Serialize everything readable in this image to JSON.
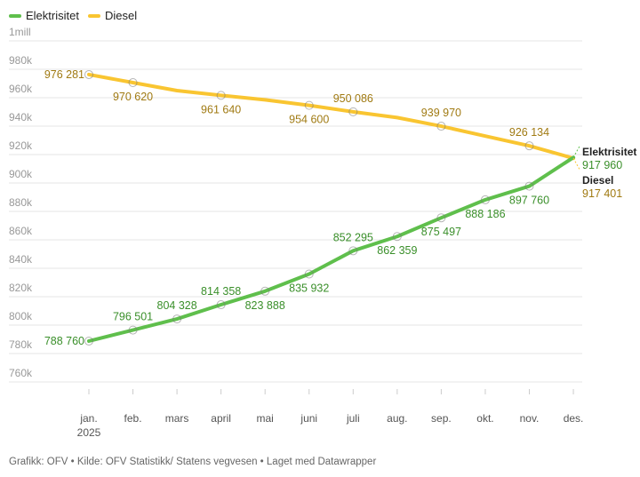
{
  "legend": [
    {
      "label": "Elektrisitet",
      "color": "#5fbf4c"
    },
    {
      "label": "Diesel",
      "color": "#f9c531"
    }
  ],
  "footer": "Grafikk: OFV • Kilde: OFV Statistikk/ Statens vegvesen • Laget med Datawrapper",
  "chart_data": {
    "type": "line",
    "title": "",
    "xlabel": "",
    "ylabel": "",
    "categories": [
      "jan.",
      "feb.",
      "mars",
      "april",
      "mai",
      "juni",
      "juli",
      "aug.",
      "sep.",
      "okt.",
      "nov.",
      "des."
    ],
    "category_sublabels": [
      "2025",
      "",
      "",
      "",
      "",
      "",
      "",
      "",
      "",
      "",
      "",
      ""
    ],
    "ylim": [
      750000,
      1000000
    ],
    "yticks": [
      {
        "value": 1000000,
        "label": "1mill"
      },
      {
        "value": 980000,
        "label": "980k"
      },
      {
        "value": 960000,
        "label": "960k"
      },
      {
        "value": 940000,
        "label": "940k"
      },
      {
        "value": 920000,
        "label": "920k"
      },
      {
        "value": 900000,
        "label": "900k"
      },
      {
        "value": 880000,
        "label": "880k"
      },
      {
        "value": 860000,
        "label": "860k"
      },
      {
        "value": 840000,
        "label": "840k"
      },
      {
        "value": 820000,
        "label": "820k"
      },
      {
        "value": 800000,
        "label": "800k"
      },
      {
        "value": 780000,
        "label": "780k"
      },
      {
        "value": 760000,
        "label": "760k"
      }
    ],
    "grid": true,
    "legend_position": "top-left",
    "series": [
      {
        "name": "Elektrisitet",
        "color": "#5fbf4c",
        "label_color": "#3a8f2a",
        "end_label": "Elektrisitet",
        "values": [
          788760,
          796501,
          804328,
          814358,
          823888,
          835932,
          852295,
          862359,
          875497,
          888186,
          897760,
          917960
        ],
        "labels": [
          "788 760",
          "796 501",
          "804 328",
          "814 358",
          "823 888",
          "835 932",
          "852 295",
          "862 359",
          "875 497",
          "888 186",
          "897 760",
          "917 960"
        ]
      },
      {
        "name": "Diesel",
        "color": "#f9c531",
        "label_color": "#a07a12",
        "end_label": "Diesel",
        "values": [
          976281,
          970620,
          965000,
          961640,
          958500,
          954600,
          950086,
          946000,
          939970,
          933000,
          926134,
          917401
        ],
        "labels": [
          "976 281",
          "970 620",
          "",
          "961 640",
          "",
          "954 600",
          "950 086",
          "",
          "939 970",
          "",
          "926 134",
          "917 401"
        ]
      }
    ]
  }
}
